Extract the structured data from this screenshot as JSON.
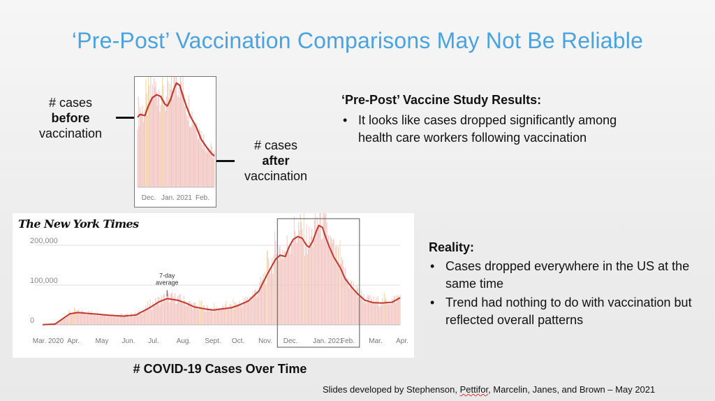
{
  "title": "‘Pre-Post’ Vaccination Comparisons May Not Be Reliable",
  "left_labels": {
    "before_line1": "# cases",
    "before_line2": "before",
    "before_line3": "vaccination",
    "after_line1": "# cases",
    "after_line2": "after",
    "after_line3": "vaccination"
  },
  "study": {
    "heading": "‘Pre-Post’ Vaccine Study Results:",
    "bullets": [
      "It looks like cases dropped significantly among health care workers following vaccination"
    ]
  },
  "reality": {
    "heading": "Reality:",
    "bullets": [
      "Cases dropped everywhere in the US at the same time",
      "Trend had nothing to do with vaccination but reflected overall patterns"
    ]
  },
  "nyt_logo": "The New York Times",
  "big_caption": "# COVID-19 Cases Over Time",
  "credits": {
    "text_before": "Slides developed by Stephenson, ",
    "underlined_name": "Pettifor",
    "text_after": ", Marcelin, Janes, and Brown – May 2021"
  },
  "colors": {
    "title": "#4aa3df",
    "line": "#c0392b",
    "bars": "#f2c6c1",
    "highlight_bar": "#f5d9a0"
  },
  "chart_data": [
    {
      "type": "line",
      "title": "",
      "xlabel": "",
      "ylabel": "",
      "ylim": [
        0,
        260000
      ],
      "x_ticks": [
        "Mar. 2020",
        "Apr.",
        "May",
        "Jun.",
        "Jul.",
        "Aug.",
        "Sept.",
        "Oct.",
        "Nov.",
        "Dec.",
        "Jan. 2021",
        "Feb.",
        "Mar.",
        "Apr."
      ],
      "y_ticks": [
        "200,000",
        "100,000",
        "0"
      ],
      "y_tick_values": [
        200000,
        100000,
        0
      ],
      "annotation": "7-day average",
      "annotation_date": "2020-07-20",
      "highlight_range": [
        "2020-11-22",
        "2021-02-23"
      ],
      "x": [
        "2020-03-01",
        "2020-03-15",
        "2020-04-01",
        "2020-04-10",
        "2020-04-20",
        "2020-05-01",
        "2020-05-15",
        "2020-06-01",
        "2020-06-15",
        "2020-07-01",
        "2020-07-10",
        "2020-07-20",
        "2020-08-01",
        "2020-08-10",
        "2020-08-20",
        "2020-09-01",
        "2020-09-10",
        "2020-09-20",
        "2020-10-01",
        "2020-10-10",
        "2020-10-20",
        "2020-11-01",
        "2020-11-10",
        "2020-11-20",
        "2020-11-25",
        "2020-12-01",
        "2020-12-05",
        "2020-12-10",
        "2020-12-15",
        "2020-12-20",
        "2020-12-25",
        "2020-12-28",
        "2021-01-01",
        "2021-01-05",
        "2021-01-08",
        "2021-01-12",
        "2021-01-15",
        "2021-01-20",
        "2021-01-25",
        "2021-02-01",
        "2021-02-07",
        "2021-02-14",
        "2021-02-20",
        "2021-02-25",
        "2021-03-01",
        "2021-03-10",
        "2021-03-20",
        "2021-04-01",
        "2021-04-10"
      ],
      "series": [
        {
          "values": [
            500,
            2000,
            28000,
            31000,
            29000,
            27000,
            24000,
            22000,
            25000,
            44000,
            57000,
            66000,
            62000,
            55000,
            45000,
            40000,
            37000,
            40000,
            43000,
            50000,
            60000,
            85000,
            125000,
            165000,
            175000,
            172000,
            195000,
            215000,
            222000,
            218000,
            200000,
            195000,
            210000,
            235000,
            250000,
            245000,
            225000,
            195000,
            170000,
            145000,
            115000,
            95000,
            80000,
            70000,
            62000,
            56000,
            55000,
            57000,
            68000
          ]
        }
      ]
    },
    {
      "type": "line",
      "title": "",
      "xlabel": "",
      "ylabel": "",
      "x_ticks": [
        "Dec.",
        "Jan. 2021",
        "Feb."
      ],
      "x": [
        "2020-11-22",
        "2020-11-25",
        "2020-12-01",
        "2020-12-05",
        "2020-12-10",
        "2020-12-15",
        "2020-12-20",
        "2020-12-25",
        "2020-12-28",
        "2021-01-01",
        "2021-01-05",
        "2021-01-08",
        "2021-01-12",
        "2021-01-15",
        "2021-01-20",
        "2021-01-25",
        "2021-02-01",
        "2021-02-07",
        "2021-02-14",
        "2021-02-20",
        "2021-02-23"
      ],
      "series": [
        {
          "values": [
            168000,
            175000,
            172000,
            195000,
            215000,
            222000,
            218000,
            200000,
            195000,
            210000,
            235000,
            250000,
            245000,
            225000,
            195000,
            170000,
            145000,
            115000,
            95000,
            80000,
            75000
          ]
        }
      ]
    }
  ]
}
